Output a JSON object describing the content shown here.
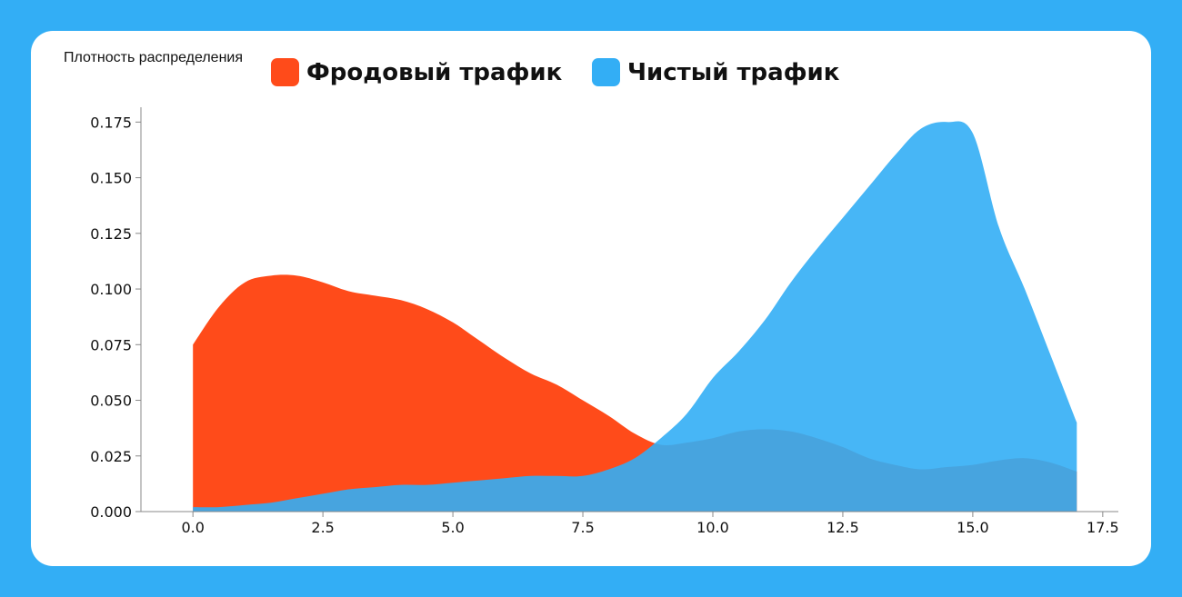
{
  "chart_data": {
    "type": "area",
    "ylabel": "Плотность распределения",
    "xlabel": "",
    "xlim": [
      -1.0,
      17.8
    ],
    "ylim": [
      0,
      0.178
    ],
    "xticks": [
      "0.0",
      "2.5",
      "5.0",
      "7.5",
      "10.0",
      "12.5",
      "15.0",
      "17.5"
    ],
    "yticks": [
      "0.000",
      "0.025",
      "0.050",
      "0.075",
      "0.100",
      "0.125",
      "0.150",
      "0.175"
    ],
    "legend_position": "top",
    "series": [
      {
        "name": "Фродовый трафик",
        "color": "#ff4b1a",
        "x": [
          0,
          0.5,
          1.0,
          1.5,
          2.0,
          2.5,
          3.0,
          3.5,
          4.0,
          4.5,
          5.0,
          5.5,
          6.0,
          6.5,
          7.0,
          7.5,
          8.0,
          8.5,
          9.0,
          9.5,
          10.0,
          10.5,
          11.0,
          11.5,
          12.0,
          12.5,
          13.0,
          13.5,
          14.0,
          14.5,
          15.0,
          15.5,
          16.0,
          16.5,
          17.0
        ],
        "y": [
          0.075,
          0.092,
          0.103,
          0.106,
          0.106,
          0.103,
          0.099,
          0.097,
          0.095,
          0.091,
          0.085,
          0.077,
          0.069,
          0.062,
          0.057,
          0.05,
          0.043,
          0.035,
          0.03,
          0.031,
          0.033,
          0.036,
          0.037,
          0.036,
          0.033,
          0.029,
          0.024,
          0.021,
          0.019,
          0.02,
          0.021,
          0.023,
          0.024,
          0.022,
          0.018
        ]
      },
      {
        "name": "Чистый трафик",
        "color": "#33aef5",
        "x": [
          0,
          0.5,
          1.0,
          1.5,
          2.0,
          2.5,
          3.0,
          3.5,
          4.0,
          4.5,
          5.0,
          5.5,
          6.0,
          6.5,
          7.0,
          7.5,
          8.0,
          8.5,
          9.0,
          9.5,
          10.0,
          10.5,
          11.0,
          11.5,
          12.0,
          12.5,
          13.0,
          13.5,
          14.0,
          14.5,
          15.0,
          15.5,
          16.0,
          16.5,
          17.0
        ],
        "y": [
          0.002,
          0.002,
          0.003,
          0.004,
          0.006,
          0.008,
          0.01,
          0.011,
          0.012,
          0.012,
          0.013,
          0.014,
          0.015,
          0.016,
          0.016,
          0.016,
          0.019,
          0.024,
          0.033,
          0.044,
          0.06,
          0.072,
          0.086,
          0.103,
          0.118,
          0.132,
          0.146,
          0.16,
          0.172,
          0.175,
          0.17,
          0.128,
          0.1,
          0.07,
          0.04
        ]
      }
    ]
  }
}
